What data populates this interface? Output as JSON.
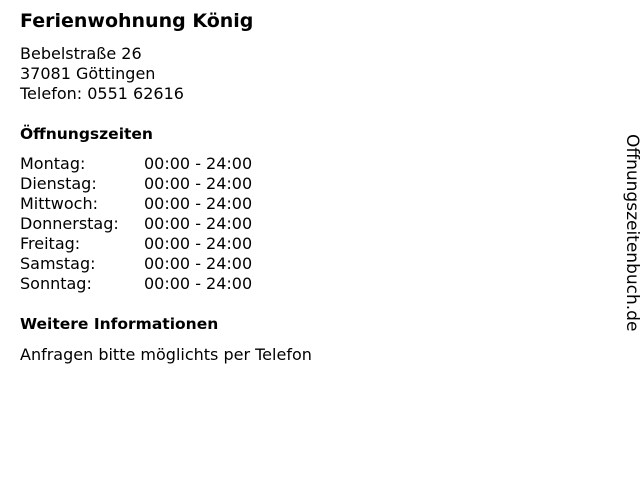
{
  "title": "Ferienwohnung König",
  "address": [
    "Bebelstraße 26",
    "37081 Göttingen",
    "Telefon: 0551 62616"
  ],
  "hours_heading": "Öffnungszeiten",
  "hours": [
    {
      "day": "Montag:",
      "time": "00:00 - 24:00"
    },
    {
      "day": "Dienstag:",
      "time": "00:00 - 24:00"
    },
    {
      "day": "Mittwoch:",
      "time": "00:00 - 24:00"
    },
    {
      "day": "Donnerstag:",
      "time": "00:00 - 24:00"
    },
    {
      "day": "Freitag:",
      "time": "00:00 - 24:00"
    },
    {
      "day": "Samstag:",
      "time": "00:00 - 24:00"
    },
    {
      "day": "Sonntag:",
      "time": "00:00 - 24:00"
    }
  ],
  "info_heading": "Weitere Informationen",
  "info_text": "Anfragen bitte möglichts per Telefon",
  "watermark": "Öffnungszeitenbuch.de"
}
